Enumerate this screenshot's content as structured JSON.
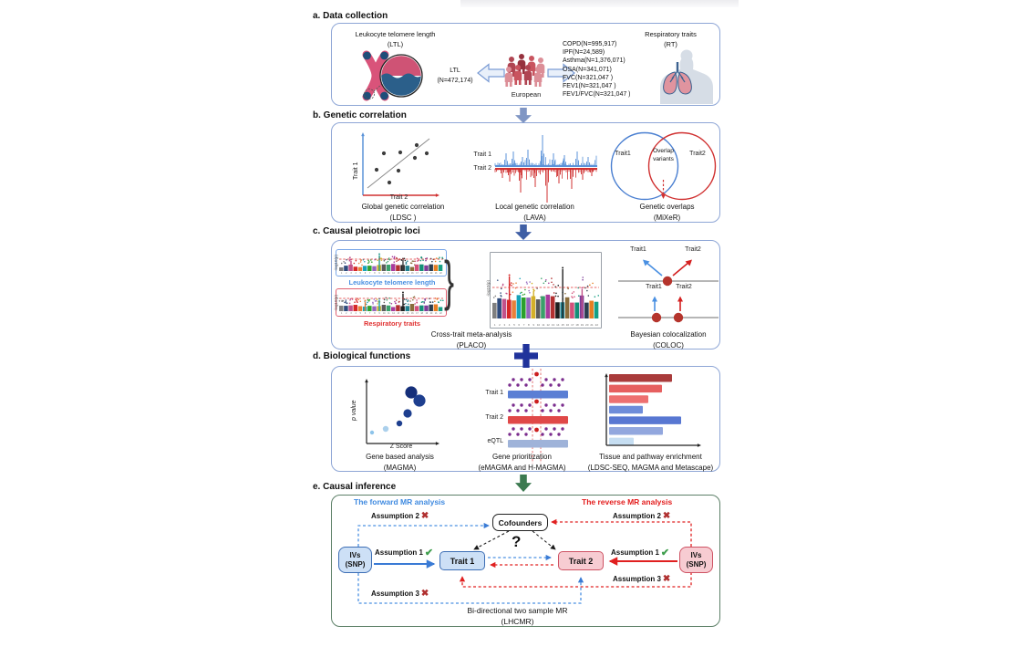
{
  "panel_a": {
    "title": "a. Data collection",
    "ltl_heading": "Leukocyte telomere length",
    "ltl_abbr": "(LTL)",
    "ltl_sample_line1": "LTL",
    "ltl_sample_line2": "(N=472,174)",
    "population": "European",
    "rt_heading": "Respiratory traits",
    "rt_abbr": "(RT)",
    "rt_list": [
      "COPD(N=995,917)",
      "IPF(N=24,589)",
      "Asthma(N=1,376,071)",
      "OSA(N=341,071)",
      "FVC(N=321,047 )",
      "FEV1(N=321,047 )",
      "FEV1/FVC(N=321,047 )"
    ]
  },
  "panel_b": {
    "title": "b. Genetic correlation",
    "ldsc": {
      "y_label": "Trait 1",
      "x_label": "Trait 2",
      "caption": "Global genetic correlation",
      "method": "(LDSC )"
    },
    "lava": {
      "trait1": "Trait 1",
      "trait2": "Trait 2",
      "caption": "Local genetic correlation",
      "method": "(LAVA)"
    },
    "mixer": {
      "trait1": "Trait1",
      "trait2": "Trait2",
      "overlap_line1": "Overlap",
      "overlap_line2": "variants",
      "caption": "Genetic overlaps",
      "method": "(MiXeR)"
    }
  },
  "panel_c": {
    "title": "c. Causal pleiotropic loci",
    "axis_log": "-log10(p)",
    "brace": "}",
    "ltl_label": "Leukocyte telomere length",
    "rt_label": "Respiratory traits",
    "placo_caption": "Cross-trait meta-analysis",
    "placo_method": "(PLACO)",
    "coloc": {
      "trait1_top": "Trait1",
      "trait2_top": "Trait2",
      "trait1_mid": "Trait1",
      "trait2_mid": "Trait2",
      "caption": "Bayesian colocalization",
      "method": "(COLOC)"
    }
  },
  "panel_d": {
    "title": "d. Biological functions",
    "magma": {
      "y_label": "p value",
      "x_label": "Z Score",
      "caption": "Gene based analysis",
      "method": "(MAGMA)"
    },
    "prioritization": {
      "row1": "Trait 1",
      "row2": "Trait 2",
      "row3": "eQTL",
      "caption": "Gene prioritization",
      "method": "(eMAGMA and H-MAGMA)"
    },
    "tissue": {
      "caption": "Tissue and pathway enrichment",
      "method": "(LDSC-SEQ, MAGMA and Metascape)"
    }
  },
  "panel_e": {
    "title": "e. Causal inference",
    "forward_title": "The forward MR analysis",
    "reverse_title": "The reverse  MR analysis",
    "cofounders": "Cofounders",
    "question": "?",
    "trait1": "Trait 1",
    "trait2": "Trait 2",
    "ivs_line1": "IVs",
    "ivs_line2": "(SNP)",
    "assumption1": "Assumption 1",
    "assumption2": "Assumption 2",
    "assumption3": "Assumption 3",
    "check": "✔",
    "cross": "✖",
    "caption": "Bi-directional two sample MR",
    "method": "(LHCMR)"
  },
  "accents": {
    "forward_blue": "#3f8ae0",
    "reverse_red": "#e31c1c",
    "panel_border_blue": "#8ea6d6",
    "panel_border_green": "#5d8068",
    "arrow_ab": "#8096c4",
    "arrow_bc": "#3f5fa5",
    "plus_cd": "#20339b",
    "arrow_de": "#3c7a50"
  },
  "illustrations": {
    "manhattan": {
      "palette": [
        "#7f7f7f",
        "#2f4b7c",
        "#c2528b",
        "#d62728",
        "#e8803a",
        "#17a2b8",
        "#2ca02c",
        "#9467bd",
        "#d4b02a",
        "#5c5c5c",
        "#3aa06a",
        "#a83a9d",
        "#b23030",
        "#1f1f1f",
        "#20818f",
        "#8a6d3b",
        "#d4507a",
        "#148f77",
        "#7d3c98",
        "#2c3e50",
        "#e67e22",
        "#16a085"
      ],
      "small_top": {
        "seed": 7,
        "thr": 13,
        "peaks": [
          [
            2,
            11,
            "#c2528b"
          ],
          [
            8,
            17,
            "#2a9d8f"
          ],
          [
            13,
            12,
            "#444444"
          ]
        ]
      },
      "small_bottom": {
        "seed": 11,
        "thr": 14,
        "peaks": [
          [
            5,
            10,
            "#e8803a"
          ],
          [
            8,
            12,
            "#17a2b8"
          ],
          [
            13,
            19,
            "#222222"
          ]
        ]
      },
      "big": {
        "seed": 23,
        "thr": 34,
        "peaks": [
          [
            3,
            46,
            "#d62728"
          ],
          [
            8,
            30,
            "#d4b02a"
          ],
          [
            14,
            54,
            "#222222"
          ],
          [
            18,
            32,
            "#c2528b"
          ]
        ]
      }
    },
    "lava": {
      "up_peaks": [
        [
          12,
          14
        ],
        [
          20,
          16
        ],
        [
          30,
          10
        ],
        [
          36,
          18
        ],
        [
          52,
          34
        ],
        [
          64,
          14
        ],
        [
          76,
          12
        ],
        [
          90,
          16
        ],
        [
          102,
          10
        ]
      ],
      "down_peaks": [
        [
          8,
          10
        ],
        [
          16,
          14
        ],
        [
          28,
          26
        ],
        [
          44,
          20
        ],
        [
          57,
          37
        ],
        [
          70,
          16
        ],
        [
          84,
          22
        ],
        [
          96,
          12
        ],
        [
          106,
          8
        ]
      ]
    },
    "ldsc_dots": [
      [
        28,
        48
      ],
      [
        36,
        30
      ],
      [
        42,
        62
      ],
      [
        52,
        49
      ],
      [
        54,
        29
      ],
      [
        70,
        35
      ],
      [
        72,
        21
      ],
      [
        83,
        30
      ]
    ],
    "magma_dots": [
      [
        18,
        66,
        2.2,
        "#8ec4ea"
      ],
      [
        33,
        62,
        3.2,
        "#abd0ec"
      ],
      [
        48,
        56,
        3.2,
        "#1e3f8f"
      ],
      [
        57,
        45,
        4.6,
        "#1e3f8f"
      ],
      [
        61,
        22,
        6.6,
        "#152f7a"
      ],
      [
        70,
        31,
        6.6,
        "#1e3f8f"
      ]
    ],
    "tissue_bars": {
      "widths": [
        69,
        58,
        43,
        37,
        79,
        59,
        27
      ],
      "colors": [
        "#a93b3b",
        "#e65f5f",
        "#ee7070",
        "#6e8cd9",
        "#5877d2",
        "#92a7de",
        "#c6def2"
      ]
    },
    "prior": {
      "bar_colors": [
        "#5b7fd4",
        "#e04848",
        "#9fb3d9"
      ],
      "dot_color": "#7b2d8e",
      "highlight_color": "#cc1f1f"
    },
    "people": {
      "colors": [
        "#b04552",
        "#c9545f",
        "#dc8e97",
        "#96323e"
      ],
      "positions": [
        [
          8,
          7,
          0
        ],
        [
          19,
          4,
          3
        ],
        [
          30,
          6,
          1
        ],
        [
          40,
          8,
          2
        ],
        [
          5,
          18,
          2
        ],
        [
          15,
          16,
          1
        ],
        [
          26,
          16,
          0
        ],
        [
          37,
          18,
          2
        ]
      ]
    }
  }
}
